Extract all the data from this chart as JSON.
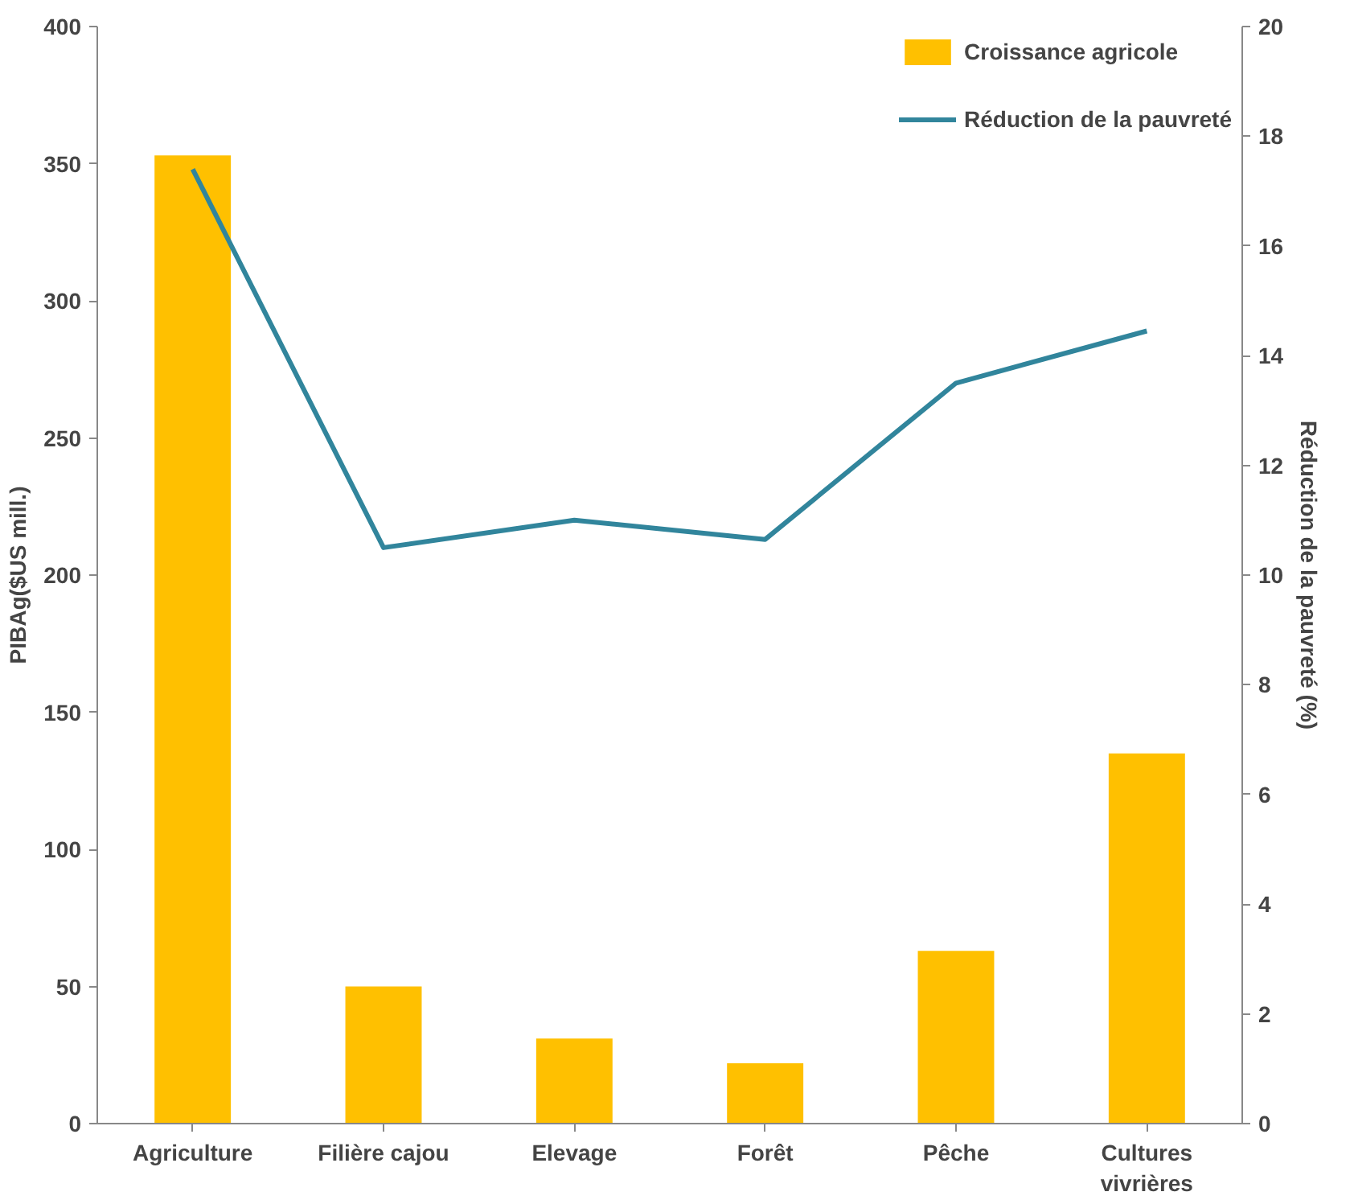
{
  "chart_data": {
    "type": "bar",
    "categories": [
      "Agriculture",
      "Filière cajou",
      "Elevage",
      "Forêt",
      "Pêche",
      "Cultures vivrières"
    ],
    "ylabel": "PIBAg($US mill.)",
    "y2label": "Réduction de la pauvreté (%)",
    "ylim": [
      0,
      400
    ],
    "yticks": [
      0,
      50,
      100,
      150,
      200,
      250,
      300,
      350,
      400
    ],
    "y2lim": [
      0,
      20
    ],
    "y2ticks": [
      0,
      2,
      4,
      6,
      8,
      10,
      12,
      14,
      16,
      18,
      20
    ],
    "grid": false,
    "legend": "top right",
    "series": [
      {
        "name": "Croissance agricole",
        "color": "#ffc000",
        "values": [
          353,
          50,
          31,
          22,
          63,
          135
        ]
      },
      {
        "name": "Réduction de la pauvreté",
        "type": "line",
        "axis": "y2",
        "color": "#31859c",
        "values": [
          17.4,
          10.5,
          11.0,
          10.65,
          13.5,
          14.45
        ]
      }
    ]
  }
}
